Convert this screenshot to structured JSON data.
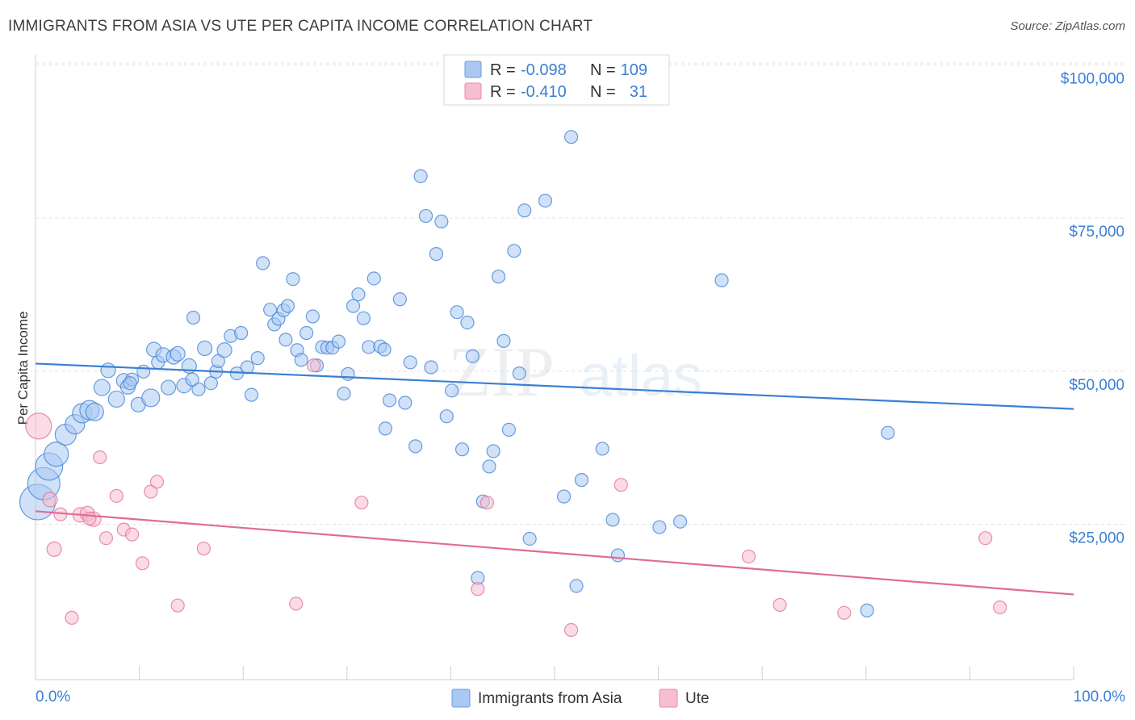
{
  "header": {
    "title": "IMMIGRANTS FROM ASIA VS UTE PER CAPITA INCOME CORRELATION CHART",
    "source": "Source: ZipAtlas.com"
  },
  "watermark": {
    "zip": "ZIP",
    "atlas": "atlas"
  },
  "legend_top": [
    {
      "r_label": "R =",
      "r_value": "-0.098",
      "n_label": "N =",
      "n_value": "109",
      "color": "#a9c8f2",
      "stroke": "#6a9de0"
    },
    {
      "r_label": "R =",
      "r_value": "-0.410",
      "n_label": "N =",
      "n_value": "31",
      "color": "#f7bdd0",
      "stroke": "#e98aaa"
    }
  ],
  "legend_bottom": [
    {
      "label": "Immigrants from Asia",
      "color": "#a9c8f2",
      "stroke": "#6a9de0"
    },
    {
      "label": "Ute",
      "color": "#f7bdd0",
      "stroke": "#e98aaa"
    }
  ],
  "chart_data": {
    "type": "scatter",
    "title": "IMMIGRANTS FROM ASIA VS UTE PER CAPITA INCOME CORRELATION CHART",
    "xlabel": "",
    "ylabel": "Per Capita Income",
    "xlim": [
      0,
      100
    ],
    "ylim": [
      2000,
      104000
    ],
    "x_tick_labels": [
      {
        "value": 0,
        "label": "0.0%"
      },
      {
        "value": 100,
        "label": "100.0%"
      }
    ],
    "y_ticks": [
      {
        "value": 25000,
        "label": "$25,000"
      },
      {
        "value": 50000,
        "label": "$50,000"
      },
      {
        "value": 75000,
        "label": "$75,000"
      },
      {
        "value": 100000,
        "label": "$100,000"
      }
    ],
    "colors": {
      "asia": "#3b7fd4",
      "ute": "#e06c96",
      "asia_fill": "#a9c8f2",
      "ute_fill": "#f7bdd0"
    },
    "series": [
      {
        "name": "Immigrants from Asia",
        "trend": [
          [
            0,
            53600
          ],
          [
            100,
            46200
          ]
        ],
        "points": [
          [
            0.2,
            31000,
            22
          ],
          [
            0.8,
            34000,
            20
          ],
          [
            1.3,
            36800,
            17
          ],
          [
            2.0,
            38800,
            15
          ],
          [
            2.9,
            42000,
            13
          ],
          [
            3.8,
            43700,
            12
          ],
          [
            4.5,
            45500,
            12
          ],
          [
            5.2,
            46000,
            12
          ],
          [
            5.7,
            45700,
            11
          ],
          [
            6.4,
            49700,
            10
          ],
          [
            7.0,
            52500,
            9
          ],
          [
            7.8,
            47800,
            10
          ],
          [
            8.5,
            50800,
            9
          ],
          [
            8.9,
            49800,
            9
          ],
          [
            9.3,
            51000,
            8
          ],
          [
            9.9,
            46900,
            9
          ],
          [
            10.4,
            52300,
            8
          ],
          [
            11.1,
            48000,
            11
          ],
          [
            11.4,
            55900,
            9
          ],
          [
            11.8,
            53800,
            8
          ],
          [
            12.3,
            55000,
            9
          ],
          [
            12.8,
            49700,
            9
          ],
          [
            13.3,
            54700,
            9
          ],
          [
            13.7,
            55200,
            9
          ],
          [
            14.3,
            50000,
            9
          ],
          [
            14.8,
            53200,
            9
          ],
          [
            15.2,
            61100,
            8
          ],
          [
            15.7,
            49400,
            8
          ],
          [
            16.3,
            56100,
            9
          ],
          [
            16.9,
            50400,
            8
          ],
          [
            17.4,
            52300,
            8
          ],
          [
            17.6,
            54000,
            8
          ],
          [
            18.2,
            55800,
            9
          ],
          [
            18.8,
            58100,
            8
          ],
          [
            19.4,
            52000,
            8
          ],
          [
            19.8,
            58600,
            8
          ],
          [
            20.4,
            53000,
            8
          ],
          [
            20.8,
            48500,
            8
          ],
          [
            21.4,
            54500,
            8
          ],
          [
            21.9,
            70000,
            8
          ],
          [
            22.6,
            62400,
            8
          ],
          [
            23.0,
            60000,
            8
          ],
          [
            23.4,
            60900,
            8
          ],
          [
            23.9,
            62300,
            8
          ],
          [
            24.3,
            63000,
            8
          ],
          [
            24.8,
            67400,
            8
          ],
          [
            25.2,
            55800,
            8
          ],
          [
            25.6,
            54200,
            8
          ],
          [
            26.1,
            58600,
            8
          ],
          [
            26.7,
            61300,
            8
          ],
          [
            27.1,
            53300,
            8
          ],
          [
            27.6,
            56300,
            8
          ],
          [
            28.1,
            56200,
            8
          ],
          [
            28.6,
            56200,
            8
          ],
          [
            29.2,
            57200,
            8
          ],
          [
            29.7,
            48700,
            8
          ],
          [
            30.1,
            51900,
            8
          ],
          [
            30.6,
            63000,
            8
          ],
          [
            31.1,
            64900,
            8
          ],
          [
            31.6,
            61000,
            8
          ],
          [
            32.1,
            56300,
            8
          ],
          [
            32.6,
            67500,
            8
          ],
          [
            33.2,
            56400,
            8
          ],
          [
            33.7,
            43000,
            8
          ],
          [
            34.1,
            47600,
            8
          ],
          [
            35.1,
            64100,
            8
          ],
          [
            35.6,
            47200,
            8
          ],
          [
            36.1,
            53800,
            8
          ],
          [
            36.6,
            40100,
            8
          ],
          [
            37.1,
            84200,
            8
          ],
          [
            37.6,
            77700,
            8
          ],
          [
            38.1,
            53000,
            8
          ],
          [
            38.6,
            71500,
            8
          ],
          [
            39.1,
            76800,
            8
          ],
          [
            39.6,
            45000,
            8
          ],
          [
            40.1,
            49200,
            8
          ],
          [
            40.6,
            62000,
            8
          ],
          [
            41.1,
            39600,
            8
          ],
          [
            41.6,
            60300,
            8
          ],
          [
            42.1,
            54800,
            8
          ],
          [
            42.6,
            18600,
            8
          ],
          [
            43.1,
            31100,
            8
          ],
          [
            43.7,
            36800,
            8
          ],
          [
            44.1,
            39300,
            8
          ],
          [
            44.6,
            67800,
            8
          ],
          [
            45.1,
            57300,
            8
          ],
          [
            45.6,
            42800,
            8
          ],
          [
            46.1,
            72000,
            8
          ],
          [
            46.6,
            52000,
            8
          ],
          [
            47.1,
            78600,
            8
          ],
          [
            47.6,
            25000,
            8
          ],
          [
            49.1,
            80200,
            8
          ],
          [
            50.9,
            31900,
            8
          ],
          [
            51.6,
            90600,
            8
          ],
          [
            52.1,
            17300,
            8
          ],
          [
            52.6,
            34600,
            8
          ],
          [
            54.6,
            39700,
            8
          ],
          [
            55.6,
            28100,
            8
          ],
          [
            56.1,
            22300,
            8
          ],
          [
            60.1,
            26900,
            8
          ],
          [
            62.1,
            27800,
            8
          ],
          [
            66.1,
            67200,
            8
          ],
          [
            80.1,
            13300,
            8
          ],
          [
            82.1,
            42300,
            8
          ],
          [
            9.1,
            50400,
            8
          ],
          [
            24.1,
            57500,
            8
          ],
          [
            33.6,
            55900,
            8
          ],
          [
            15.1,
            51000,
            8
          ]
        ]
      },
      {
        "name": "Ute",
        "trend": [
          [
            0,
            29500
          ],
          [
            100,
            15900
          ]
        ],
        "points": [
          [
            0.3,
            43400,
            16
          ],
          [
            1.4,
            31400,
            9
          ],
          [
            1.8,
            23300,
            9
          ],
          [
            2.4,
            29000,
            8
          ],
          [
            3.5,
            12100,
            8
          ],
          [
            4.3,
            28900,
            9
          ],
          [
            5.0,
            29100,
            9
          ],
          [
            5.6,
            28200,
            9
          ],
          [
            6.2,
            38300,
            8
          ],
          [
            6.8,
            25100,
            8
          ],
          [
            7.8,
            32000,
            8
          ],
          [
            8.5,
            26500,
            8
          ],
          [
            9.3,
            25700,
            8
          ],
          [
            10.3,
            21000,
            8
          ],
          [
            11.1,
            32700,
            8
          ],
          [
            11.7,
            34300,
            8
          ],
          [
            13.7,
            14100,
            8
          ],
          [
            16.2,
            23400,
            8
          ],
          [
            25.1,
            14400,
            8
          ],
          [
            26.8,
            53300,
            8
          ],
          [
            31.4,
            30900,
            8
          ],
          [
            42.6,
            16800,
            8
          ],
          [
            43.5,
            30900,
            8
          ],
          [
            51.6,
            10100,
            8
          ],
          [
            56.4,
            33800,
            8
          ],
          [
            68.7,
            22100,
            8
          ],
          [
            71.7,
            14200,
            8
          ],
          [
            77.9,
            12900,
            8
          ],
          [
            91.5,
            25100,
            8
          ],
          [
            92.9,
            13800,
            8
          ],
          [
            5.2,
            28300,
            8
          ]
        ]
      }
    ]
  }
}
